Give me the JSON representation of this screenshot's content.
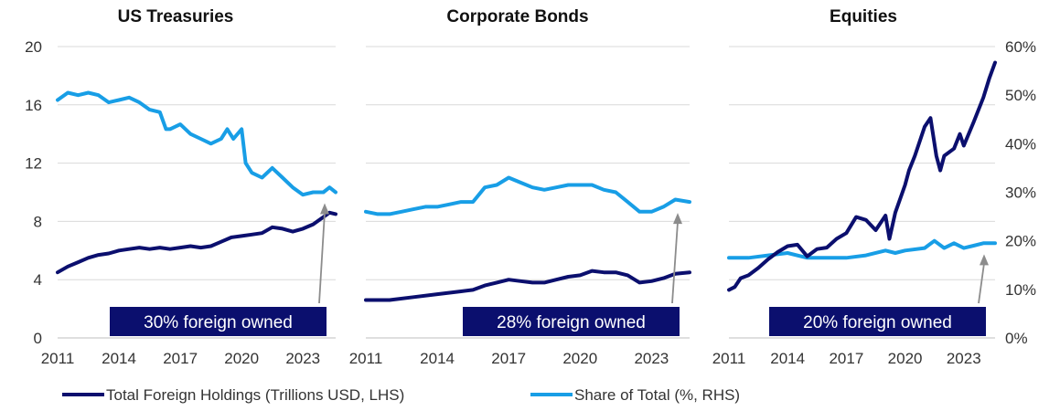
{
  "legend": {
    "holdings_label": "Total Foreign Holdings (Trillions USD, LHS)",
    "share_label": "Share of Total (%, RHS)"
  },
  "colors": {
    "holdings": "#0b0f6e",
    "share": "#189ee6",
    "note_box": "#0b0f6e",
    "arrow": "#8c8c8c",
    "grid": "#d9d9d9"
  },
  "chart_data": [
    {
      "type": "line",
      "title": "US Treasuries",
      "xlim": [
        2011,
        2024.6
      ],
      "x_ticks": [
        "2011",
        "2014",
        "2017",
        "2020",
        "2023"
      ],
      "ylim_left": [
        0,
        20
      ],
      "y_ticks_left": [
        "0",
        "4",
        "8",
        "12",
        "16",
        "20"
      ],
      "ylim_right": [
        0,
        60
      ],
      "grid": true,
      "annotation": "30% foreign owned",
      "series": [
        {
          "name": "Total Foreign Holdings (Trillions USD, LHS)",
          "axis": "left",
          "x": [
            2011,
            2011.5,
            2012,
            2012.5,
            2013,
            2013.5,
            2014,
            2014.5,
            2015,
            2015.5,
            2016,
            2016.5,
            2017,
            2017.5,
            2018,
            2018.5,
            2019,
            2019.5,
            2020,
            2020.5,
            2021,
            2021.5,
            2022,
            2022.5,
            2023,
            2023.5,
            2024,
            2024.3,
            2024.6
          ],
          "values": [
            4.5,
            4.9,
            5.2,
            5.5,
            5.7,
            5.8,
            6.0,
            6.1,
            6.2,
            6.1,
            6.2,
            6.1,
            6.2,
            6.3,
            6.2,
            6.3,
            6.6,
            6.9,
            7.0,
            7.1,
            7.2,
            7.6,
            7.5,
            7.3,
            7.5,
            7.8,
            8.3,
            8.6,
            8.5
          ]
        },
        {
          "name": "Share of Total (%, RHS)",
          "axis": "right",
          "x": [
            2011,
            2011.5,
            2012,
            2012.5,
            2013,
            2013.5,
            2014,
            2014.5,
            2015,
            2015.5,
            2016,
            2016.3,
            2016.5,
            2017,
            2017.5,
            2018,
            2018.5,
            2019,
            2019.3,
            2019.6,
            2020,
            2020.2,
            2020.5,
            2021,
            2021.5,
            2022,
            2022.5,
            2023,
            2023.5,
            2024,
            2024.3,
            2024.6
          ],
          "values": [
            49,
            50.5,
            50,
            50.5,
            50,
            48.5,
            49,
            49.5,
            48.5,
            47,
            46.5,
            43,
            43,
            44,
            42,
            41,
            40,
            41,
            43,
            41,
            43,
            36,
            34,
            33,
            35,
            33,
            31,
            29.5,
            30,
            30,
            31,
            30
          ]
        }
      ]
    },
    {
      "type": "line",
      "title": "Corporate Bonds",
      "xlim": [
        2011,
        2024.6
      ],
      "x_ticks": [
        "2011",
        "2014",
        "2017",
        "2020",
        "2023"
      ],
      "ylim_left": [
        0,
        20
      ],
      "ylim_right": [
        0,
        60
      ],
      "grid": true,
      "annotation": "28% foreign owned",
      "series": [
        {
          "name": "Total Foreign Holdings (Trillions USD, LHS)",
          "axis": "left",
          "x": [
            2011,
            2012,
            2013,
            2014,
            2015,
            2015.5,
            2016,
            2016.5,
            2017,
            2017.5,
            2018,
            2018.5,
            2019,
            2019.5,
            2020,
            2020.5,
            2021,
            2021.5,
            2022,
            2022.5,
            2023,
            2023.5,
            2024,
            2024.6
          ],
          "values": [
            2.6,
            2.6,
            2.8,
            3.0,
            3.2,
            3.3,
            3.6,
            3.8,
            4.0,
            3.9,
            3.8,
            3.8,
            4.0,
            4.2,
            4.3,
            4.6,
            4.5,
            4.5,
            4.3,
            3.8,
            3.9,
            4.1,
            4.4,
            4.5
          ]
        },
        {
          "name": "Share of Total (%, RHS)",
          "axis": "right",
          "x": [
            2011,
            2011.5,
            2012,
            2012.5,
            2013,
            2013.5,
            2014,
            2014.5,
            2015,
            2015.5,
            2016,
            2016.5,
            2017,
            2017.5,
            2018,
            2018.5,
            2019,
            2019.5,
            2020,
            2020.5,
            2021,
            2021.5,
            2022,
            2022.5,
            2023,
            2023.5,
            2024,
            2024.6
          ],
          "values": [
            26,
            25.5,
            25.5,
            26,
            26.5,
            27,
            27,
            27.5,
            28,
            28,
            31,
            31.5,
            33,
            32,
            31,
            30.5,
            31,
            31.5,
            31.5,
            31.5,
            30.5,
            30,
            28,
            26,
            26,
            27,
            28.5,
            28
          ]
        }
      ]
    },
    {
      "type": "line",
      "title": "Equities",
      "xlim": [
        2011,
        2024.6
      ],
      "x_ticks": [
        "2011",
        "2014",
        "2017",
        "2020",
        "2023"
      ],
      "ylim_left": [
        0,
        20
      ],
      "ylim_right": [
        0,
        60
      ],
      "y_ticks_right": [
        "0%",
        "10%",
        "20%",
        "30%",
        "40%",
        "50%",
        "60%"
      ],
      "grid": true,
      "annotation": "20% foreign owned",
      "series": [
        {
          "name": "Total Foreign Holdings (Trillions USD, LHS)",
          "axis": "left",
          "x": [
            2011,
            2011.3,
            2011.6,
            2012,
            2012.5,
            2013,
            2013.5,
            2014,
            2014.5,
            2015,
            2015.5,
            2016,
            2016.5,
            2017,
            2017.5,
            2018,
            2018.5,
            2019,
            2019.2,
            2019.5,
            2020,
            2020.2,
            2020.5,
            2021,
            2021.3,
            2021.6,
            2021.8,
            2022,
            2022.5,
            2022.8,
            2023,
            2023.5,
            2024,
            2024.3,
            2024.6
          ],
          "values": [
            3.3,
            3.5,
            4.1,
            4.3,
            4.8,
            5.4,
            5.9,
            6.3,
            6.4,
            5.6,
            6.1,
            6.2,
            6.8,
            7.2,
            8.3,
            8.1,
            7.4,
            8.4,
            6.8,
            8.6,
            10.5,
            11.5,
            12.5,
            14.5,
            15.1,
            12.5,
            11.5,
            12.5,
            13.0,
            14.0,
            13.2,
            14.8,
            16.5,
            17.8,
            18.9
          ]
        },
        {
          "name": "Share of Total (%, RHS)",
          "axis": "right",
          "x": [
            2011,
            2012,
            2013,
            2014,
            2015,
            2016,
            2017,
            2018,
            2019,
            2019.5,
            2020,
            2021,
            2021.5,
            2022,
            2022.5,
            2023,
            2023.5,
            2024,
            2024.6
          ],
          "values": [
            16.5,
            16.5,
            17,
            17.5,
            16.5,
            16.5,
            16.5,
            17,
            18,
            17.5,
            18,
            18.5,
            20,
            18.5,
            19.5,
            18.5,
            19,
            19.5,
            19.5
          ]
        }
      ]
    }
  ]
}
